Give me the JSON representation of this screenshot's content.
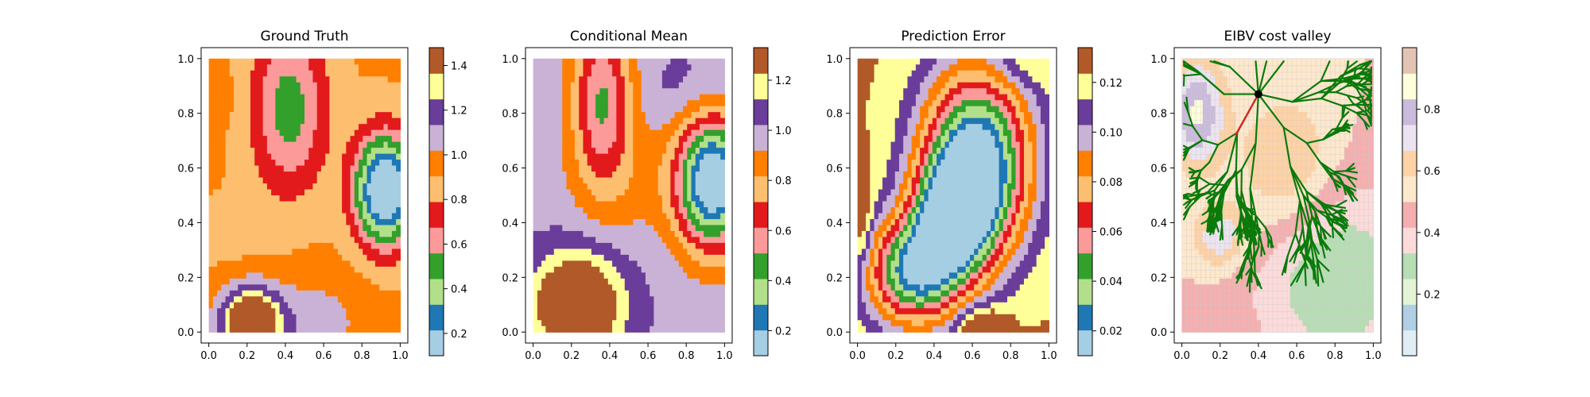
{
  "chart_data": [
    {
      "type": "heatmap",
      "title": "Ground Truth",
      "xlabel": "",
      "ylabel": "",
      "xlim": [
        0,
        1
      ],
      "ylim": [
        0,
        1
      ],
      "xticks": [
        "0.0",
        "0.2",
        "0.4",
        "0.6",
        "0.8",
        "1.0"
      ],
      "yticks": [
        "0.0",
        "0.2",
        "0.4",
        "0.6",
        "0.8",
        "1.0"
      ],
      "colorbar": {
        "range": [
          0.1,
          1.48
        ],
        "ticks": [
          "0.2",
          "0.4",
          "0.6",
          "0.8",
          "1.0",
          "1.2",
          "1.4"
        ]
      },
      "colormap": "Paired"
    },
    {
      "type": "heatmap",
      "title": "Conditional Mean",
      "xlabel": "",
      "ylabel": "",
      "xlim": [
        0,
        1
      ],
      "ylim": [
        0,
        1
      ],
      "xticks": [
        "0.0",
        "0.2",
        "0.4",
        "0.6",
        "0.8",
        "1.0"
      ],
      "yticks": [
        "0.0",
        "0.2",
        "0.4",
        "0.6",
        "0.8",
        "1.0"
      ],
      "colorbar": {
        "range": [
          0.1,
          1.33
        ],
        "ticks": [
          "0.2",
          "0.4",
          "0.6",
          "0.8",
          "1.0",
          "1.2"
        ]
      },
      "colormap": "Paired"
    },
    {
      "type": "heatmap",
      "title": "Prediction Error",
      "xlabel": "",
      "ylabel": "",
      "xlim": [
        0,
        1
      ],
      "ylim": [
        0,
        1
      ],
      "xticks": [
        "0.0",
        "0.2",
        "0.4",
        "0.6",
        "0.8",
        "1.0"
      ],
      "yticks": [
        "0.0",
        "0.2",
        "0.4",
        "0.6",
        "0.8",
        "1.0"
      ],
      "colorbar": {
        "range": [
          0.01,
          0.134
        ],
        "ticks": [
          "0.02",
          "0.04",
          "0.06",
          "0.08",
          "0.10",
          "0.12"
        ]
      },
      "colormap": "Paired"
    },
    {
      "type": "heatmap",
      "title": "EIBV cost valley",
      "xlabel": "",
      "ylabel": "",
      "xlim": [
        0,
        1
      ],
      "ylim": [
        0,
        1
      ],
      "xticks": [
        "0.0",
        "0.2",
        "0.4",
        "0.6",
        "0.8",
        "1.0"
      ],
      "yticks": [
        "0.0",
        "0.2",
        "0.4",
        "0.6",
        "0.8",
        "1.0"
      ],
      "colorbar": {
        "range": [
          0.0,
          1.0
        ],
        "ticks": [
          "0.2",
          "0.4",
          "0.6",
          "0.8"
        ]
      },
      "colormap": "Paired (light)",
      "grid": true,
      "tree_root": [
        0.4,
        0.87
      ],
      "tree_color": "#0a7a0a",
      "path_color": "#e02020",
      "path_end": [
        0.28,
        0.72
      ]
    }
  ]
}
